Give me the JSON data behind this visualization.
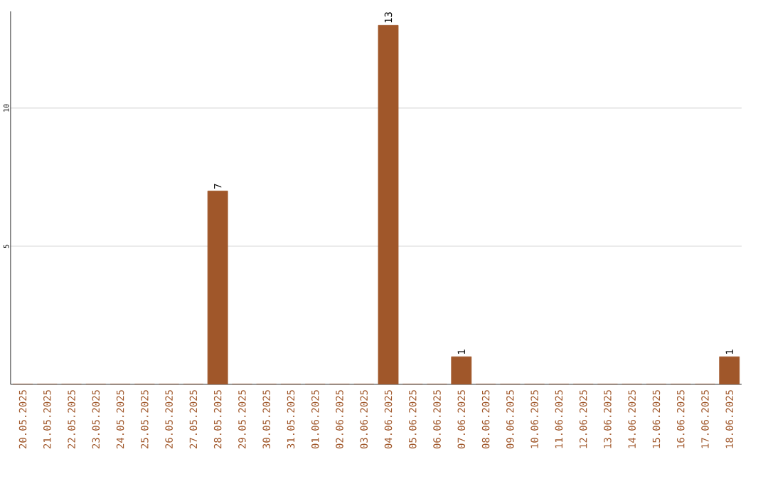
{
  "chart_data": {
    "type": "bar",
    "categories": [
      "20.05.2025",
      "21.05.2025",
      "22.05.2025",
      "23.05.2025",
      "24.05.2025",
      "25.05.2025",
      "26.05.2025",
      "27.05.2025",
      "28.05.2025",
      "29.05.2025",
      "30.05.2025",
      "31.05.2025",
      "01.06.2025",
      "02.06.2025",
      "03.06.2025",
      "04.06.2025",
      "05.06.2025",
      "06.06.2025",
      "07.06.2025",
      "08.06.2025",
      "09.06.2025",
      "10.06.2025",
      "11.06.2025",
      "12.06.2025",
      "13.06.2025",
      "14.06.2025",
      "15.06.2025",
      "16.06.2025",
      "17.06.2025",
      "18.06.2025"
    ],
    "values": [
      0,
      0,
      0,
      0,
      0,
      0,
      0,
      0,
      7,
      0,
      0,
      0,
      0,
      0,
      0,
      13,
      0,
      0,
      1,
      0,
      0,
      0,
      0,
      0,
      0,
      0,
      0,
      0,
      0,
      1
    ],
    "value_labels": [
      null,
      null,
      null,
      null,
      null,
      null,
      null,
      null,
      "7",
      null,
      null,
      null,
      null,
      null,
      null,
      "13",
      null,
      null,
      "1",
      null,
      null,
      null,
      null,
      null,
      null,
      null,
      null,
      null,
      null,
      "1"
    ],
    "color": "#a0572a",
    "ylim": [
      0,
      13.5
    ],
    "yticks": [
      5,
      10
    ],
    "grid": "y"
  }
}
